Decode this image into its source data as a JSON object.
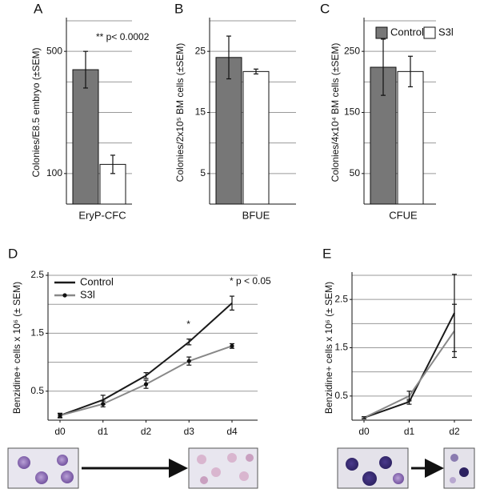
{
  "chart_data": [
    {
      "type": "bar",
      "label": "A",
      "ylabel": "Colonies/E8.5 embryo (±SEM)",
      "xlabel": "EryP-CFC",
      "categories": [
        null
      ],
      "series": [
        {
          "color": "#777777",
          "values": [
            440
          ],
          "errors": [
            60
          ]
        },
        {
          "color": "#ffffff",
          "values": [
            130
          ],
          "errors": [
            30
          ]
        }
      ],
      "ylim": [
        0,
        600
      ],
      "yticks": [
        100,
        500
      ],
      "ygrid": [
        100,
        200,
        300,
        400,
        500,
        600
      ],
      "annotations": [
        "** p< 0.0002"
      ]
    },
    {
      "type": "bar",
      "label": "B",
      "ylabel": "Colonies/2x10⁵ BM cells (±SEM)",
      "xlabel": "BFUE",
      "categories": [
        null
      ],
      "series": [
        {
          "color": "#777777",
          "values": [
            24
          ],
          "errors": [
            3.5
          ]
        },
        {
          "color": "#ffffff",
          "values": [
            21.7
          ],
          "errors": [
            0.4
          ]
        }
      ],
      "ylim": [
        0,
        30
      ],
      "yticks": [
        5,
        15,
        25
      ],
      "ygrid": [
        5,
        10,
        15,
        20,
        25,
        30
      ]
    },
    {
      "type": "bar",
      "label": "C",
      "ylabel": "Colonies/4x10⁴ BM cells (±SEM)",
      "xlabel": "CFUE",
      "categories": [
        null
      ],
      "series": [
        {
          "name": "Control",
          "color": "#777777",
          "values": [
            224
          ],
          "errors": [
            46
          ]
        },
        {
          "name": "S3l",
          "color": "#ffffff",
          "values": [
            217
          ],
          "errors": [
            25
          ]
        }
      ],
      "ylim": [
        0,
        300
      ],
      "yticks": [
        50,
        150,
        250
      ],
      "ygrid": [
        50,
        100,
        150,
        200,
        250,
        300
      ],
      "legend": "upper right"
    },
    {
      "type": "line",
      "label": "D",
      "ylabel": "Benzidine+ cells x 10⁶ (± SEM)",
      "categories": [
        "d0",
        "d1",
        "d2",
        "d3",
        "d4"
      ],
      "series": [
        {
          "name": "Control",
          "color": "#1a1a1a",
          "values": [
            0.08,
            0.35,
            0.77,
            1.35,
            2.02
          ],
          "errors": [
            0.04,
            0.08,
            0.05,
            0.05,
            0.12
          ]
        },
        {
          "name": "S3l",
          "color": "#888888",
          "marker": true,
          "values": [
            0.08,
            0.28,
            0.62,
            1.02,
            1.28
          ],
          "errors": [
            0.03,
            0.05,
            0.07,
            0.07,
            0.04
          ]
        }
      ],
      "ylim": [
        0,
        2.5
      ],
      "yticks": [
        0.5,
        1.5,
        2.5
      ],
      "ygrid": [
        0.5,
        1,
        1.5,
        2,
        2.5
      ],
      "legend": "upper left",
      "annotations": [
        {
          "text": "*",
          "category": "d3"
        },
        {
          "text": "*  p < 0.05",
          "category": "d4"
        }
      ]
    },
    {
      "type": "line",
      "label": "E",
      "ylabel": "Benzidine+ cells x 10⁶ (± SEM)",
      "categories": [
        "d0",
        "d1",
        "d2"
      ],
      "series": [
        {
          "color": "#1a1a1a",
          "values": [
            0.05,
            0.38,
            2.22
          ],
          "errors": [
            0.02,
            0.05,
            0.8
          ]
        },
        {
          "color": "#888888",
          "values": [
            0.05,
            0.5,
            1.85
          ],
          "errors": [
            0.02,
            0.1,
            0.55
          ]
        }
      ],
      "ylim": [
        0,
        3
      ],
      "yticks": [
        0.5,
        1.5,
        2.5
      ],
      "ygrid": [
        0.5,
        1,
        1.5,
        2,
        2.5,
        3
      ]
    }
  ]
}
